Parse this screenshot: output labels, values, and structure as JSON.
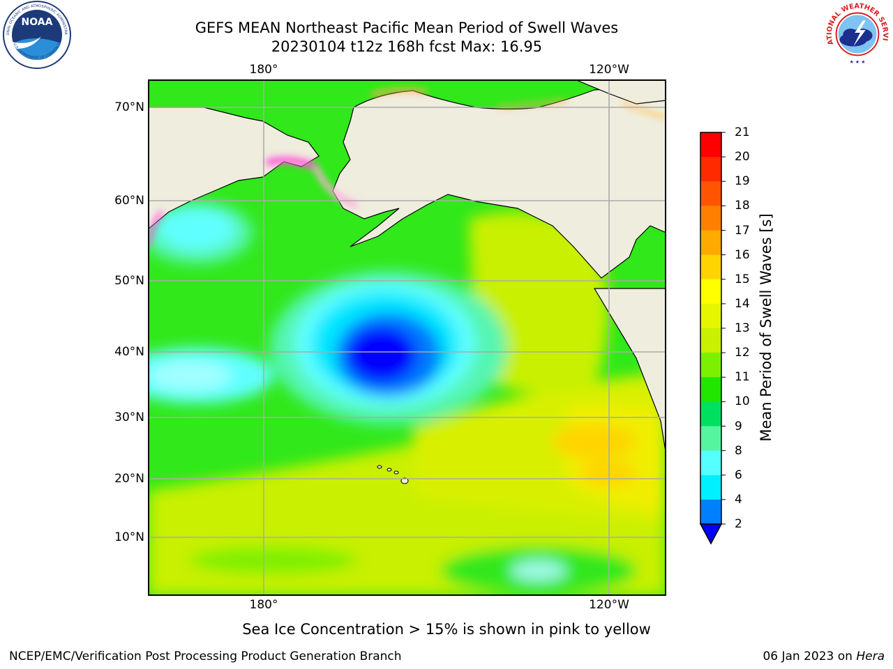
{
  "header": {
    "title_line_1": "GEFS MEAN Northeast Pacific Mean Period of Swell Waves",
    "title_line_2": "20230104 t12z 168h fcst   Max: 16.95"
  },
  "logos": {
    "noaa_text": "NOAA",
    "noaa_ring_text": "NATIONAL OCEANIC AND ATMOSPHERIC ADMINISTRATION",
    "noaa_ring_bottom": "U.S. DEPARTMENT OF COMMERCE",
    "nws_ring_text": "NATIONAL WEATHER SERVICE"
  },
  "map": {
    "lon_labels_top": [
      "180°",
      "120°W"
    ],
    "lon_labels_bottom": [
      "180°",
      "120°W"
    ],
    "lat_labels": [
      "70°N",
      "60°N",
      "50°N",
      "40°N",
      "30°N",
      "20°N",
      "10°N"
    ]
  },
  "colorbar": {
    "label": "Mean Period of Swell Waves [s]",
    "ticks": [
      "21",
      "20",
      "19",
      "18",
      "17",
      "16",
      "15",
      "14",
      "13",
      "12",
      "11",
      "10",
      "9",
      "8",
      "6",
      "4",
      "2"
    ],
    "colors": [
      "#ff0000",
      "#ff2a00",
      "#ff5500",
      "#ff8000",
      "#ffaa00",
      "#ffd400",
      "#ffff00",
      "#e6f500",
      "#c8f000",
      "#7df000",
      "#20e600",
      "#00e060",
      "#55f5a0",
      "#a0ffff",
      "#55ffff",
      "#00f0ff",
      "#0080ff",
      "#0000ff"
    ]
  },
  "footnote": "Sea Ice Concentration > 15% is shown in pink to yellow",
  "footer": {
    "left": "NCEP/EMC/Verification Post Processing Product Generation Branch",
    "right_prefix": "06 Jan 2023 on ",
    "right_host": "Hera"
  }
}
